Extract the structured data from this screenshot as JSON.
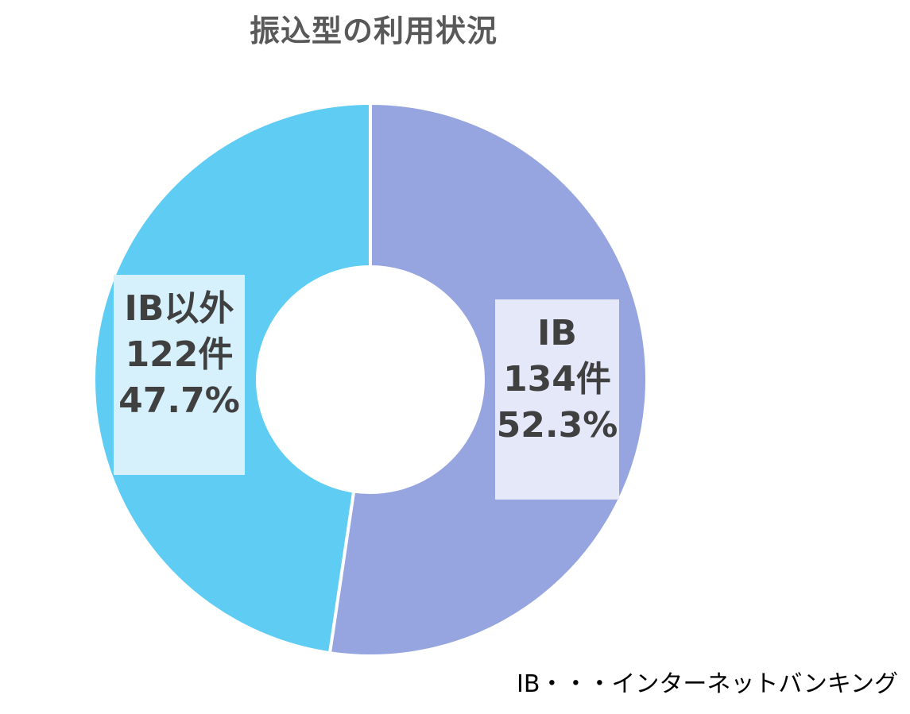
{
  "chart_data": {
    "type": "pie",
    "title": "振込型の利用状況",
    "variant": "donut",
    "start": "12 o'clock, clockwise",
    "slices": [
      {
        "name": "IB",
        "count": 134,
        "count_label": "134件",
        "percent": 52.3,
        "percent_label": "52.3%",
        "color": "#96A5E0",
        "label_bg": "#E4E8F8"
      },
      {
        "name": "IB以外",
        "count": 122,
        "count_label": "122件",
        "percent": 47.7,
        "percent_label": "47.7%",
        "color": "#5FCCF3",
        "label_bg": "#D7F1FC"
      }
    ],
    "footnote": "IB・・・インターネットバンキング"
  }
}
